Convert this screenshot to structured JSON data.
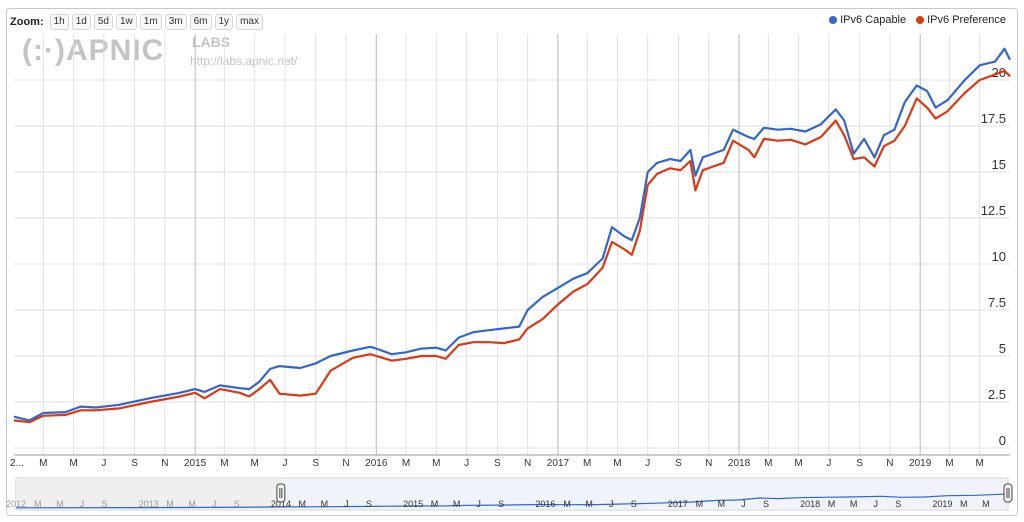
{
  "toolbar": {
    "zoom_label": "Zoom:",
    "zoom_options": [
      "1h",
      "1d",
      "5d",
      "1w",
      "1m",
      "3m",
      "6m",
      "1y",
      "max"
    ]
  },
  "watermark": {
    "logo": "(:·)APNIC",
    "labs": "LABS",
    "url": "http://labs.apnic.net/"
  },
  "colors": {
    "ipv6_capable": "#3366cc",
    "ipv6_preference": "#dc3912",
    "grid": "#e2e2e2",
    "year_grid": "#b9b9b9"
  },
  "chart_data": {
    "type": "line",
    "title": "",
    "xlabel": "",
    "ylabel": "",
    "ylim": [
      0,
      22.5
    ],
    "y_ticks": [
      "0",
      "2.5",
      "5",
      "7.5",
      "10",
      "12.5",
      "15",
      "17.5",
      "20"
    ],
    "x_range": [
      "2014-01-01",
      "2019-07-01"
    ],
    "x_tick_labels": [
      "2...",
      "M",
      "M",
      "J",
      "S",
      "N",
      "2015",
      "M",
      "M",
      "J",
      "S",
      "N",
      "2016",
      "M",
      "M",
      "J",
      "S",
      "N",
      "2017",
      "M",
      "M",
      "J",
      "S",
      "N",
      "2018",
      "M",
      "M",
      "J",
      "S",
      "N",
      "2019",
      "M",
      "M"
    ],
    "legend_position": "top-right",
    "grid": true,
    "series": [
      {
        "name": "IPv6 Capable",
        "points": [
          [
            "2014-01-01",
            1.7
          ],
          [
            "2014-02-01",
            1.5
          ],
          [
            "2014-03-01",
            1.9
          ],
          [
            "2014-04-15",
            1.95
          ],
          [
            "2014-05-15",
            2.25
          ],
          [
            "2014-06-15",
            2.2
          ],
          [
            "2014-08-01",
            2.35
          ],
          [
            "2014-10-01",
            2.7
          ],
          [
            "2014-12-01",
            3.0
          ],
          [
            "2015-01-01",
            3.2
          ],
          [
            "2015-01-20",
            3.05
          ],
          [
            "2015-02-20",
            3.4
          ],
          [
            "2015-04-01",
            3.25
          ],
          [
            "2015-04-20",
            3.2
          ],
          [
            "2015-05-10",
            3.6
          ],
          [
            "2015-06-01",
            4.3
          ],
          [
            "2015-06-20",
            4.45
          ],
          [
            "2015-08-01",
            4.35
          ],
          [
            "2015-09-01",
            4.6
          ],
          [
            "2015-10-01",
            5.0
          ],
          [
            "2015-11-15",
            5.3
          ],
          [
            "2015-12-20",
            5.5
          ],
          [
            "2016-01-01",
            5.4
          ],
          [
            "2016-02-01",
            5.1
          ],
          [
            "2016-03-01",
            5.2
          ],
          [
            "2016-04-01",
            5.4
          ],
          [
            "2016-05-01",
            5.45
          ],
          [
            "2016-05-20",
            5.3
          ],
          [
            "2016-06-15",
            6.0
          ],
          [
            "2016-07-15",
            6.3
          ],
          [
            "2016-08-15",
            6.4
          ],
          [
            "2016-09-15",
            6.5
          ],
          [
            "2016-10-15",
            6.6
          ],
          [
            "2016-11-01",
            7.5
          ],
          [
            "2016-12-01",
            8.2
          ],
          [
            "2017-01-01",
            8.7
          ],
          [
            "2017-02-01",
            9.2
          ],
          [
            "2017-03-01",
            9.5
          ],
          [
            "2017-04-01",
            10.3
          ],
          [
            "2017-04-20",
            12.0
          ],
          [
            "2017-05-15",
            11.5
          ],
          [
            "2017-05-30",
            11.3
          ],
          [
            "2017-06-15",
            12.5
          ],
          [
            "2017-07-01",
            15.0
          ],
          [
            "2017-07-20",
            15.5
          ],
          [
            "2017-08-15",
            15.7
          ],
          [
            "2017-09-05",
            15.6
          ],
          [
            "2017-09-25",
            16.2
          ],
          [
            "2017-10-05",
            14.8
          ],
          [
            "2017-10-20",
            15.8
          ],
          [
            "2017-11-10",
            16.0
          ],
          [
            "2017-12-01",
            16.2
          ],
          [
            "2017-12-20",
            17.3
          ],
          [
            "2018-01-20",
            16.9
          ],
          [
            "2018-02-01",
            16.8
          ],
          [
            "2018-02-20",
            17.4
          ],
          [
            "2018-03-20",
            17.3
          ],
          [
            "2018-04-15",
            17.35
          ],
          [
            "2018-05-15",
            17.2
          ],
          [
            "2018-06-15",
            17.6
          ],
          [
            "2018-07-15",
            18.4
          ],
          [
            "2018-08-01",
            17.8
          ],
          [
            "2018-08-20",
            16.0
          ],
          [
            "2018-09-10",
            16.8
          ],
          [
            "2018-10-01",
            15.8
          ],
          [
            "2018-10-20",
            17.0
          ],
          [
            "2018-11-10",
            17.3
          ],
          [
            "2018-12-01",
            18.8
          ],
          [
            "2018-12-25",
            19.7
          ],
          [
            "2019-01-15",
            19.4
          ],
          [
            "2019-02-01",
            18.5
          ],
          [
            "2019-02-25",
            18.9
          ],
          [
            "2019-04-01",
            20.0
          ],
          [
            "2019-05-01",
            20.8
          ],
          [
            "2019-06-01",
            21.0
          ],
          [
            "2019-06-20",
            21.7
          ],
          [
            "2019-07-01",
            21.1
          ]
        ]
      },
      {
        "name": "IPv6 Preference",
        "points": [
          [
            "2014-01-01",
            1.5
          ],
          [
            "2014-02-01",
            1.4
          ],
          [
            "2014-03-01",
            1.75
          ],
          [
            "2014-04-15",
            1.8
          ],
          [
            "2014-05-15",
            2.05
          ],
          [
            "2014-06-15",
            2.05
          ],
          [
            "2014-08-01",
            2.15
          ],
          [
            "2014-10-01",
            2.5
          ],
          [
            "2014-12-01",
            2.8
          ],
          [
            "2015-01-01",
            3.0
          ],
          [
            "2015-01-20",
            2.7
          ],
          [
            "2015-02-20",
            3.2
          ],
          [
            "2015-04-01",
            3.0
          ],
          [
            "2015-04-20",
            2.8
          ],
          [
            "2015-05-10",
            3.2
          ],
          [
            "2015-06-01",
            3.7
          ],
          [
            "2015-06-20",
            2.95
          ],
          [
            "2015-08-01",
            2.85
          ],
          [
            "2015-09-01",
            2.95
          ],
          [
            "2015-10-01",
            4.2
          ],
          [
            "2015-11-15",
            4.9
          ],
          [
            "2015-12-20",
            5.1
          ],
          [
            "2016-01-01",
            5.0
          ],
          [
            "2016-02-01",
            4.75
          ],
          [
            "2016-03-01",
            4.85
          ],
          [
            "2016-04-01",
            5.0
          ],
          [
            "2016-05-01",
            5.0
          ],
          [
            "2016-05-20",
            4.85
          ],
          [
            "2016-06-15",
            5.6
          ],
          [
            "2016-07-15",
            5.75
          ],
          [
            "2016-08-15",
            5.75
          ],
          [
            "2016-09-15",
            5.7
          ],
          [
            "2016-10-15",
            5.9
          ],
          [
            "2016-11-01",
            6.5
          ],
          [
            "2016-12-01",
            7.0
          ],
          [
            "2017-01-01",
            7.8
          ],
          [
            "2017-02-01",
            8.5
          ],
          [
            "2017-03-01",
            8.9
          ],
          [
            "2017-04-01",
            9.8
          ],
          [
            "2017-04-20",
            11.2
          ],
          [
            "2017-05-15",
            10.8
          ],
          [
            "2017-05-30",
            10.5
          ],
          [
            "2017-06-15",
            11.8
          ],
          [
            "2017-07-01",
            14.3
          ],
          [
            "2017-07-20",
            14.9
          ],
          [
            "2017-08-15",
            15.2
          ],
          [
            "2017-09-05",
            15.1
          ],
          [
            "2017-09-25",
            15.6
          ],
          [
            "2017-10-05",
            14.0
          ],
          [
            "2017-10-20",
            15.1
          ],
          [
            "2017-11-10",
            15.3
          ],
          [
            "2017-12-01",
            15.5
          ],
          [
            "2017-12-20",
            16.7
          ],
          [
            "2018-01-20",
            16.2
          ],
          [
            "2018-02-01",
            15.8
          ],
          [
            "2018-02-20",
            16.8
          ],
          [
            "2018-03-20",
            16.7
          ],
          [
            "2018-04-15",
            16.75
          ],
          [
            "2018-05-15",
            16.5
          ],
          [
            "2018-06-15",
            16.9
          ],
          [
            "2018-07-15",
            17.8
          ],
          [
            "2018-08-01",
            17.0
          ],
          [
            "2018-08-20",
            15.7
          ],
          [
            "2018-09-10",
            15.8
          ],
          [
            "2018-10-01",
            15.3
          ],
          [
            "2018-10-20",
            16.4
          ],
          [
            "2018-11-10",
            16.7
          ],
          [
            "2018-12-01",
            17.5
          ],
          [
            "2018-12-25",
            19.0
          ],
          [
            "2019-01-15",
            18.5
          ],
          [
            "2019-02-01",
            17.9
          ],
          [
            "2019-02-25",
            18.3
          ],
          [
            "2019-04-01",
            19.3
          ],
          [
            "2019-05-01",
            20.0
          ],
          [
            "2019-06-01",
            20.3
          ],
          [
            "2019-06-20",
            20.5
          ],
          [
            "2019-07-01",
            20.2
          ]
        ]
      }
    ]
  },
  "navigator": {
    "x_range": [
      "2012-01-01",
      "2019-07-01"
    ],
    "window_start": "2014-01-01",
    "window_end": "2019-07-01",
    "tick_labels": [
      [
        "2012-01-01",
        "2012"
      ],
      [
        "2012-03-01",
        "M"
      ],
      [
        "2012-05-01",
        "M"
      ],
      [
        "2012-07-01",
        "J"
      ],
      [
        "2012-09-01",
        "S"
      ],
      [
        "2013-01-01",
        "2013"
      ],
      [
        "2013-03-01",
        "M"
      ],
      [
        "2013-05-01",
        "M"
      ],
      [
        "2013-07-01",
        "J"
      ],
      [
        "2013-09-01",
        "S"
      ],
      [
        "2014-01-01",
        "2014"
      ],
      [
        "2014-03-01",
        "M"
      ],
      [
        "2014-05-01",
        "M"
      ],
      [
        "2014-07-01",
        "J"
      ],
      [
        "2014-09-01",
        "S"
      ],
      [
        "2015-01-01",
        "2015"
      ],
      [
        "2015-03-01",
        "M"
      ],
      [
        "2015-05-01",
        "M"
      ],
      [
        "2015-07-01",
        "J"
      ],
      [
        "2015-09-01",
        "S"
      ],
      [
        "2016-01-01",
        "2016"
      ],
      [
        "2016-03-01",
        "M"
      ],
      [
        "2016-05-01",
        "M"
      ],
      [
        "2016-07-01",
        "J"
      ],
      [
        "2016-09-01",
        "S"
      ],
      [
        "2017-01-01",
        "2017"
      ],
      [
        "2017-03-01",
        "M"
      ],
      [
        "2017-05-01",
        "M"
      ],
      [
        "2017-07-01",
        "J"
      ],
      [
        "2017-09-01",
        "S"
      ],
      [
        "2018-01-01",
        "2018"
      ],
      [
        "2018-03-01",
        "M"
      ],
      [
        "2018-05-01",
        "M"
      ],
      [
        "2018-07-01",
        "J"
      ],
      [
        "2018-09-01",
        "S"
      ],
      [
        "2019-01-01",
        "2019"
      ],
      [
        "2019-03-01",
        "M"
      ],
      [
        "2019-05-01",
        "M"
      ]
    ]
  }
}
